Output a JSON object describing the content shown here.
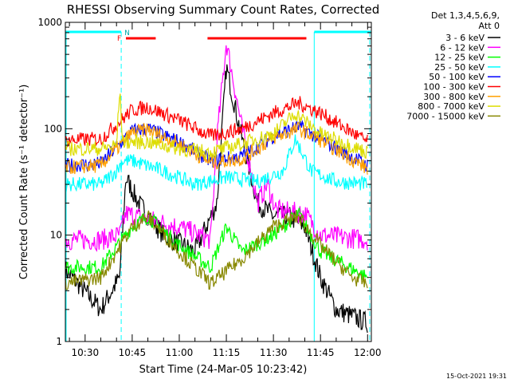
{
  "chart_data": {
    "type": "line",
    "title": "RHESSI Observing Summary Count Rates, Corrected",
    "xlabel": "Start Time (24-Mar-05 10:23:42)",
    "ylabel": "Corrected Count Rate (s⁻¹ detector⁻¹)",
    "yscale": "log",
    "ylim": [
      1,
      1000
    ],
    "xlim_minutes_after_10_23_42": [
      0,
      97.5
    ],
    "x_ticks": [
      "10:30",
      "10:45",
      "11:00",
      "11:15",
      "11:30",
      "11:45",
      "12:00"
    ],
    "y_ticks": [
      "1",
      "10",
      "100",
      "1000"
    ],
    "legend_header": [
      "Det 1,3,4,5,6,9,",
      "Att 0"
    ],
    "footer": "15-Oct-2021 19:31",
    "flags": {
      "night_label": "N",
      "flare_label": "F",
      "night_bars_cyan": [
        [
          "10:23:42",
          "10:41:30"
        ],
        [
          "11:43:00",
          "12:01:00"
        ]
      ],
      "flare_bars_red": [
        [
          "10:43:00",
          "10:52:30"
        ],
        [
          "11:09:00",
          "11:40:30"
        ]
      ],
      "night_boundaries_dashed": [
        "10:41:30",
        "12:01:00"
      ],
      "night_boundaries_solid": [
        "10:23:42",
        "11:43:00"
      ]
    },
    "series": [
      {
        "name": "3 - 6 keV",
        "color": "#000000",
        "points": [
          [
            "10:23",
            5
          ],
          [
            "10:35",
            2
          ],
          [
            "10:41",
            4
          ],
          [
            "10:43",
            35
          ],
          [
            "10:47",
            20
          ],
          [
            "10:55",
            10
          ],
          [
            "11:05",
            7
          ],
          [
            "11:12",
            20
          ],
          [
            "11:15",
            380
          ],
          [
            "11:20",
            80
          ],
          [
            "11:25",
            20
          ],
          [
            "11:30",
            15
          ],
          [
            "11:35",
            15
          ],
          [
            "11:40",
            12
          ],
          [
            "11:45",
            4
          ],
          [
            "11:50",
            2
          ],
          [
            "12:00",
            1.5
          ]
        ]
      },
      {
        "name": "6 - 12 keV",
        "color": "#ff00ff",
        "points": [
          [
            "10:23",
            9
          ],
          [
            "10:35",
            9
          ],
          [
            "10:41",
            10
          ],
          [
            "10:43",
            16
          ],
          [
            "10:50",
            14
          ],
          [
            "11:00",
            12
          ],
          [
            "11:10",
            9
          ],
          [
            "11:12",
            80
          ],
          [
            "11:15",
            650
          ],
          [
            "11:20",
            100
          ],
          [
            "11:25",
            20
          ],
          [
            "11:28",
            30
          ],
          [
            "11:31",
            17
          ],
          [
            "11:40",
            16
          ],
          [
            "11:45",
            10
          ],
          [
            "12:00",
            9
          ]
        ]
      },
      {
        "name": "12 - 25 keV",
        "color": "#00ff00",
        "points": [
          [
            "10:23",
            5
          ],
          [
            "10:35",
            5
          ],
          [
            "10:45",
            12
          ],
          [
            "10:50",
            15
          ],
          [
            "11:00",
            8
          ],
          [
            "11:10",
            5
          ],
          [
            "11:15",
            12
          ],
          [
            "11:20",
            7
          ],
          [
            "11:30",
            10
          ],
          [
            "11:38",
            16
          ],
          [
            "11:45",
            7
          ],
          [
            "12:00",
            4
          ]
        ]
      },
      {
        "name": "25 - 50 keV",
        "color": "#00ffff",
        "points": [
          [
            "10:23",
            30
          ],
          [
            "10:35",
            30
          ],
          [
            "10:40",
            40
          ],
          [
            "10:42",
            50
          ],
          [
            "10:45",
            50
          ],
          [
            "10:55",
            40
          ],
          [
            "11:05",
            30
          ],
          [
            "11:15",
            35
          ],
          [
            "11:25",
            32
          ],
          [
            "11:33",
            40
          ],
          [
            "11:37",
            80
          ],
          [
            "11:42",
            40
          ],
          [
            "11:50",
            32
          ],
          [
            "12:00",
            30
          ]
        ]
      },
      {
        "name": "50 - 100 keV",
        "color": "#0000ff",
        "points": [
          [
            "10:23",
            45
          ],
          [
            "10:35",
            47
          ],
          [
            "10:45",
            95
          ],
          [
            "10:50",
            100
          ],
          [
            "11:00",
            75
          ],
          [
            "11:10",
            50
          ],
          [
            "11:20",
            55
          ],
          [
            "11:30",
            85
          ],
          [
            "11:38",
            105
          ],
          [
            "11:45",
            80
          ],
          [
            "12:00",
            45
          ]
        ]
      },
      {
        "name": "100 - 300 keV",
        "color": "#ff0000",
        "points": [
          [
            "10:23",
            78
          ],
          [
            "10:35",
            80
          ],
          [
            "10:45",
            150
          ],
          [
            "10:50",
            160
          ],
          [
            "11:00",
            120
          ],
          [
            "11:10",
            85
          ],
          [
            "11:20",
            100
          ],
          [
            "11:30",
            140
          ],
          [
            "11:38",
            175
          ],
          [
            "11:45",
            140
          ],
          [
            "12:00",
            75
          ]
        ]
      },
      {
        "name": "300 - 800 keV",
        "color": "#ffa000",
        "points": [
          [
            "10:23",
            43
          ],
          [
            "10:35",
            45
          ],
          [
            "10:45",
            92
          ],
          [
            "10:50",
            98
          ],
          [
            "11:00",
            72
          ],
          [
            "11:10",
            48
          ],
          [
            "11:20",
            52
          ],
          [
            "11:30",
            82
          ],
          [
            "11:38",
            100
          ],
          [
            "11:45",
            78
          ],
          [
            "12:00",
            42
          ]
        ]
      },
      {
        "name": "800 - 7000 keV",
        "color": "#dddd00",
        "points": [
          [
            "10:23",
            65
          ],
          [
            "10:35",
            65
          ],
          [
            "10:40",
            70
          ],
          [
            "10:41",
            230
          ],
          [
            "10:42",
            75
          ],
          [
            "10:50",
            75
          ],
          [
            "11:00",
            65
          ],
          [
            "11:10",
            60
          ],
          [
            "11:20",
            72
          ],
          [
            "11:30",
            90
          ],
          [
            "11:37",
            140
          ],
          [
            "11:45",
            90
          ],
          [
            "12:00",
            60
          ]
        ]
      },
      {
        "name": "7000 - 15000 keV",
        "color": "#888800",
        "points": [
          [
            "10:23",
            3.5
          ],
          [
            "10:35",
            4
          ],
          [
            "10:45",
            12
          ],
          [
            "10:50",
            15
          ],
          [
            "11:00",
            7
          ],
          [
            "11:10",
            3.5
          ],
          [
            "11:20",
            6
          ],
          [
            "11:30",
            12
          ],
          [
            "11:38",
            15
          ],
          [
            "11:45",
            8
          ],
          [
            "11:55",
            4
          ],
          [
            "12:00",
            3.5
          ]
        ]
      }
    ]
  }
}
